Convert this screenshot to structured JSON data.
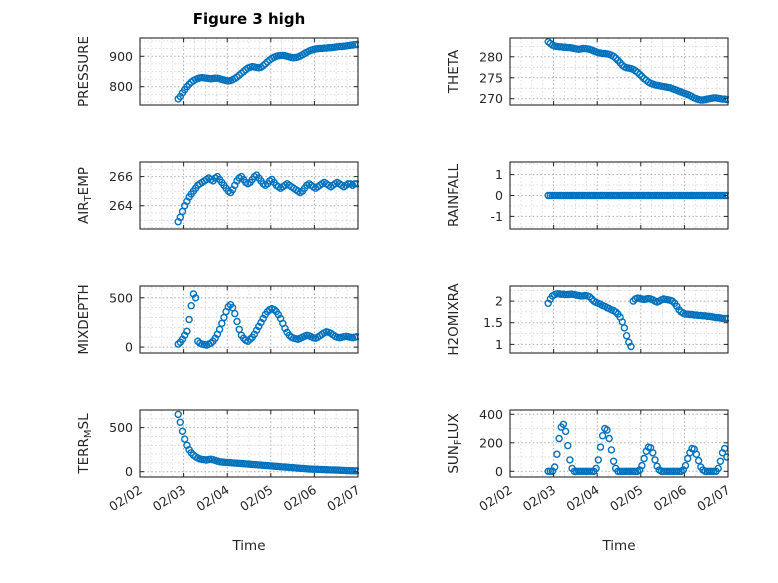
{
  "chart_data": {
    "type": "scatter",
    "title": "Figure 3 high",
    "xlabel": "Time",
    "marker": "open-circle",
    "marker_color": "#0072BD",
    "grid": true,
    "legend": "none",
    "xlim": [
      0,
      5
    ],
    "x_tick_values": [
      0,
      1,
      2,
      3,
      4,
      5
    ],
    "x_tick_labels": [
      "02/02",
      "02/03",
      "02/04",
      "02/05",
      "02/06",
      "02/07"
    ],
    "x_minor_step": 0.25,
    "x_start": 0.875,
    "x_step": 0.05,
    "subplots": [
      {
        "name": "pressure",
        "ylabel_pre": "PRESSURE",
        "ylabel_sub": "",
        "ylabel_post": "",
        "ylim": [
          740,
          960
        ],
        "yticks": [
          800,
          900
        ],
        "y_minor_step": 25,
        "values": [
          760,
          768,
          780,
          790,
          800,
          808,
          815,
          820,
          824,
          827,
          829,
          830,
          829,
          828,
          827,
          826,
          827,
          828,
          828,
          826,
          824,
          822,
          820,
          819,
          820,
          823,
          827,
          832,
          838,
          844,
          850,
          856,
          861,
          864,
          866,
          865,
          863,
          862,
          864,
          869,
          875,
          882,
          888,
          893,
          897,
          900,
          902,
          903,
          903,
          902,
          900,
          898,
          896,
          895,
          896,
          898,
          901,
          905,
          909,
          913,
          917,
          920,
          922,
          924,
          925,
          926,
          926,
          927,
          927,
          928,
          928,
          929,
          930,
          931,
          932,
          932,
          933,
          934,
          935,
          936,
          937,
          938,
          939
        ]
      },
      {
        "name": "airtemp",
        "ylabel_pre": "AIR",
        "ylabel_sub": "T",
        "ylabel_post": "EMP",
        "ylim": [
          262.4,
          267.0
        ],
        "yticks": [
          264,
          266
        ],
        "y_minor_step": 0.5,
        "values": [
          262.9,
          263.2,
          263.6,
          264.0,
          264.3,
          264.6,
          264.8,
          265.0,
          265.2,
          265.4,
          265.5,
          265.6,
          265.7,
          265.8,
          265.9,
          265.8,
          265.7,
          265.9,
          266.0,
          265.8,
          265.6,
          265.4,
          265.2,
          265.0,
          264.9,
          265.1,
          265.4,
          265.7,
          265.9,
          266.0,
          265.8,
          265.6,
          265.5,
          265.6,
          265.8,
          266.0,
          266.1,
          265.9,
          265.7,
          265.5,
          265.4,
          265.5,
          265.7,
          265.8,
          265.6,
          265.4,
          265.3,
          265.2,
          265.3,
          265.4,
          265.5,
          265.4,
          265.3,
          265.2,
          265.1,
          265.0,
          264.9,
          265.0,
          265.2,
          265.4,
          265.5,
          265.4,
          265.3,
          265.2,
          265.3,
          265.4,
          265.5,
          265.6,
          265.5,
          265.4,
          265.3,
          265.4,
          265.5,
          265.6,
          265.5,
          265.4,
          265.3,
          265.4,
          265.5,
          265.5,
          265.4,
          265.5,
          265.5
        ]
      },
      {
        "name": "mixdepth",
        "ylabel_pre": "MIXDEPTH",
        "ylabel_sub": "",
        "ylabel_post": "",
        "ylim": [
          -60,
          620
        ],
        "yticks": [
          0,
          500
        ],
        "y_minor_step": 100,
        "values": [
          30,
          50,
          80,
          120,
          160,
          280,
          420,
          540,
          500,
          60,
          40,
          30,
          25,
          20,
          30,
          40,
          60,
          90,
          130,
          180,
          240,
          300,
          360,
          410,
          430,
          400,
          340,
          260,
          180,
          120,
          90,
          70,
          60,
          80,
          100,
          130,
          170,
          210,
          250,
          290,
          330,
          360,
          380,
          390,
          380,
          360,
          330,
          290,
          240,
          190,
          150,
          120,
          100,
          90,
          85,
          80,
          90,
          100,
          110,
          120,
          115,
          105,
          95,
          90,
          100,
          115,
          130,
          145,
          155,
          150,
          140,
          125,
          110,
          100,
          95,
          100,
          105,
          110,
          105,
          100,
          95,
          100,
          105
        ]
      },
      {
        "name": "terrmsl",
        "ylabel_pre": "TERR",
        "ylabel_sub": "M",
        "ylabel_post": "SL",
        "ylim": [
          -60,
          700
        ],
        "yticks": [
          0,
          500
        ],
        "y_minor_step": 100,
        "values": [
          650,
          560,
          460,
          370,
          300,
          250,
          215,
          190,
          170,
          155,
          145,
          140,
          136,
          133,
          138,
          142,
          136,
          128,
          120,
          114,
          110,
          108,
          106,
          104,
          102,
          100,
          98,
          96,
          95,
          93,
          91,
          89,
          87,
          85,
          83,
          81,
          79,
          77,
          75,
          73,
          71,
          69,
          67,
          65,
          63,
          61,
          59,
          57,
          55,
          53,
          51,
          49,
          47,
          45,
          43,
          41,
          39,
          37,
          35,
          33,
          31,
          30,
          29,
          28,
          27,
          26,
          25,
          24,
          23,
          22,
          21,
          20,
          19,
          18,
          17,
          16,
          15,
          14,
          13,
          12,
          11,
          10,
          10
        ]
      },
      {
        "name": "theta",
        "ylabel_pre": "THETA",
        "ylabel_sub": "",
        "ylabel_post": "",
        "ylim": [
          268.5,
          284.5
        ],
        "yticks": [
          270,
          275,
          280
        ],
        "y_minor_step": 2.5,
        "values": [
          283.6,
          283.2,
          282.8,
          282.6,
          282.5,
          282.4,
          282.4,
          282.3,
          282.3,
          282.2,
          282.2,
          282.1,
          282.0,
          281.9,
          281.8,
          281.9,
          282.0,
          282.0,
          281.9,
          281.8,
          281.6,
          281.4,
          281.2,
          281.0,
          280.9,
          280.8,
          280.8,
          280.7,
          280.6,
          280.4,
          280.1,
          279.7,
          279.2,
          278.6,
          278.0,
          277.6,
          277.4,
          277.3,
          277.2,
          277.0,
          276.7,
          276.3,
          275.8,
          275.3,
          274.8,
          274.4,
          274.0,
          273.7,
          273.5,
          273.3,
          273.2,
          273.1,
          273.0,
          272.9,
          272.8,
          272.7,
          272.6,
          272.4,
          272.2,
          272.0,
          271.8,
          271.6,
          271.4,
          271.2,
          271.0,
          270.8,
          270.5,
          270.2,
          270.0,
          269.8,
          269.7,
          269.7,
          269.8,
          269.9,
          270.0,
          270.1,
          270.2,
          270.2,
          270.1,
          270.0,
          269.9,
          269.9,
          269.8
        ]
      },
      {
        "name": "rainfall",
        "ylabel_pre": "RAINFALL",
        "ylabel_sub": "",
        "ylabel_post": "",
        "ylim": [
          -1.6,
          1.6
        ],
        "yticks": [
          -1,
          0,
          1
        ],
        "y_minor_step": 0.5,
        "values": [
          0,
          0,
          0,
          0,
          0,
          0,
          0,
          0,
          0,
          0,
          0,
          0,
          0,
          0,
          0,
          0,
          0,
          0,
          0,
          0,
          0,
          0,
          0,
          0,
          0,
          0,
          0,
          0,
          0,
          0,
          0,
          0,
          0,
          0,
          0,
          0,
          0,
          0,
          0,
          0,
          0,
          0,
          0,
          0,
          0,
          0,
          0,
          0,
          0,
          0,
          0,
          0,
          0,
          0,
          0,
          0,
          0,
          0,
          0,
          0,
          0,
          0,
          0,
          0,
          0,
          0,
          0,
          0,
          0,
          0,
          0,
          0,
          0,
          0,
          0,
          0,
          0,
          0,
          0,
          0,
          0,
          0,
          0
        ]
      },
      {
        "name": "h2omixra",
        "ylabel_pre": "H2OMIXRA",
        "ylabel_sub": "",
        "ylabel_post": "",
        "ylim": [
          0.8,
          2.35
        ],
        "yticks": [
          1,
          1.5,
          2
        ],
        "y_minor_step": 0.25,
        "values": [
          1.95,
          2.05,
          2.12,
          2.15,
          2.17,
          2.17,
          2.16,
          2.16,
          2.15,
          2.15,
          2.16,
          2.16,
          2.15,
          2.14,
          2.13,
          2.12,
          2.12,
          2.13,
          2.12,
          2.1,
          2.05,
          2.0,
          1.97,
          1.95,
          1.93,
          1.9,
          1.88,
          1.85,
          1.83,
          1.8,
          1.78,
          1.75,
          1.7,
          1.63,
          1.52,
          1.38,
          1.2,
          1.05,
          0.95,
          2.0,
          2.05,
          2.07,
          2.06,
          2.05,
          2.04,
          2.05,
          2.06,
          2.05,
          2.03,
          2.0,
          1.98,
          2.0,
          2.03,
          2.05,
          2.04,
          2.03,
          2.02,
          2.0,
          1.95,
          1.88,
          1.8,
          1.75,
          1.72,
          1.7,
          1.7,
          1.69,
          1.69,
          1.68,
          1.68,
          1.67,
          1.67,
          1.66,
          1.66,
          1.65,
          1.65,
          1.64,
          1.63,
          1.62,
          1.62,
          1.61,
          1.6,
          1.6,
          1.6
        ]
      },
      {
        "name": "sunflux",
        "ylabel_pre": "SUN",
        "ylabel_sub": "F",
        "ylabel_post": "LUX",
        "ylim": [
          -40,
          430
        ],
        "yticks": [
          0,
          200,
          400
        ],
        "y_minor_step": 100,
        "values": [
          0,
          0,
          0,
          30,
          120,
          230,
          310,
          330,
          280,
          180,
          80,
          20,
          0,
          0,
          0,
          0,
          0,
          0,
          0,
          0,
          0,
          0,
          20,
          80,
          170,
          250,
          300,
          290,
          230,
          150,
          70,
          20,
          0,
          0,
          0,
          0,
          0,
          0,
          0,
          0,
          0,
          0,
          10,
          40,
          90,
          140,
          170,
          165,
          130,
          80,
          35,
          10,
          0,
          0,
          0,
          0,
          0,
          0,
          0,
          0,
          0,
          0,
          10,
          40,
          90,
          130,
          160,
          155,
          120,
          75,
          30,
          10,
          0,
          0,
          0,
          0,
          0,
          0,
          20,
          70,
          130,
          160,
          100
        ]
      }
    ]
  }
}
